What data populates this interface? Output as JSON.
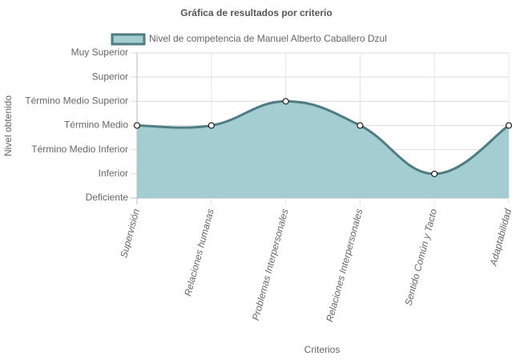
{
  "chart_data": {
    "type": "line",
    "title": "Gráfica de resultados por criterio",
    "x_label": "Criterios",
    "y_label": "Nivel obtenido",
    "categories": [
      "Supervisión",
      "Relaciones humanas",
      "Problemas Interpersonales",
      "Relaciones Interpersonales",
      "Sentido Común y Tacto",
      "Adaptabilidad"
    ],
    "series": [
      {
        "name": "Nivel de competencia de Manuel Alberto Caballero Dzul",
        "color": "#4e7c83",
        "fill_color": "#a3cdd1",
        "values": [
          3,
          3,
          4,
          3,
          1,
          3
        ]
      }
    ],
    "fill": true,
    "ylim": [
      0,
      6
    ],
    "yticks": [
      {
        "value": 0,
        "label": "Deficiente"
      },
      {
        "value": 1,
        "label": "Inferior"
      },
      {
        "value": 2,
        "label": "Término Medio Inferior"
      },
      {
        "value": 3,
        "label": "Término Medio"
      },
      {
        "value": 4,
        "label": "Término Medio Superior"
      },
      {
        "value": 5,
        "label": "Superior"
      },
      {
        "value": 6,
        "label": "Muy Superior"
      }
    ],
    "grid": true
  }
}
